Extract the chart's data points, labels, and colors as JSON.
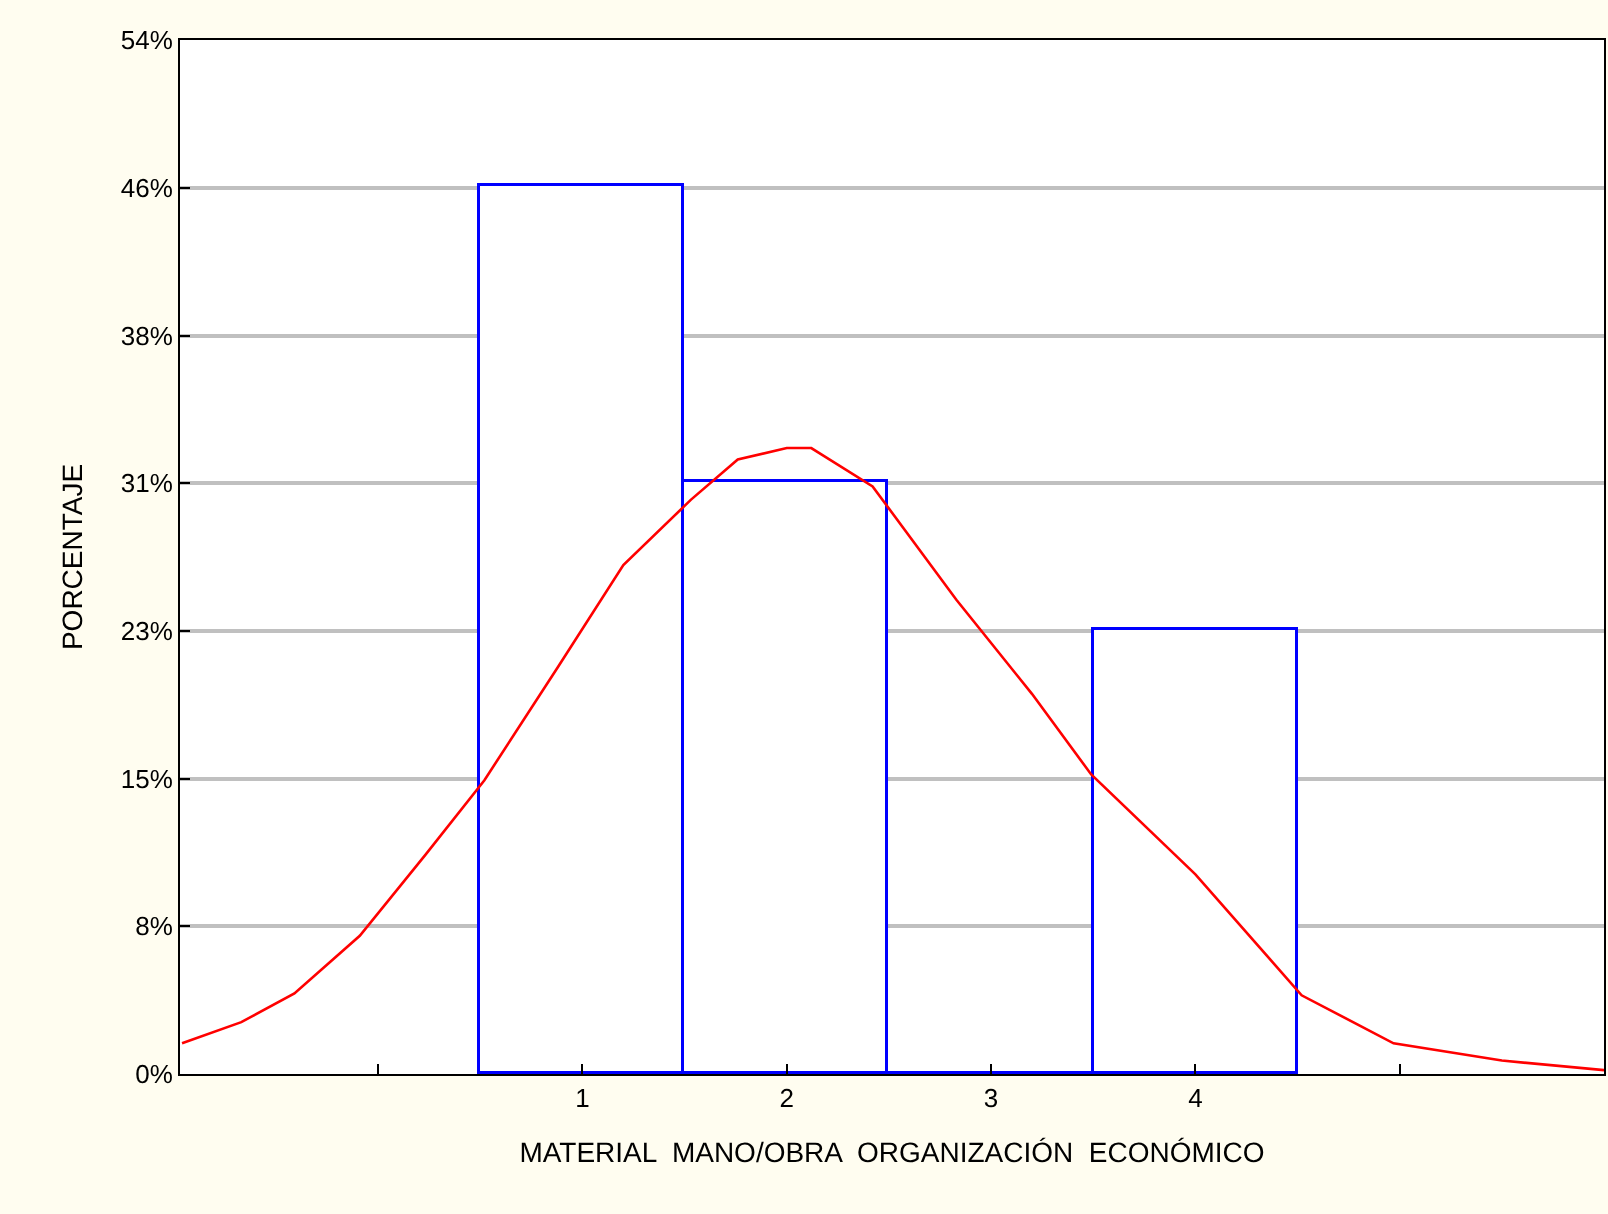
{
  "chart_data": {
    "type": "histogram",
    "xlabel": "MATERIAL  MANO/OBRA  ORGANIZACIÓN  ECONÓMICO",
    "ylabel": "PORCENTAJE",
    "bins": [
      0.5,
      1.5,
      2.5,
      3.5,
      4.5
    ],
    "values": [
      46.2,
      30.8,
      0,
      23.1
    ],
    "color": "#0000ff",
    "series": [
      {
        "type": "line",
        "color": "#ff0000",
        "x": [
          -0.96,
          -0.67,
          -0.41,
          -0.09,
          0.23,
          0.52,
          0.88,
          1.2,
          1.53,
          1.76,
          2.0,
          2.12,
          2.42,
          2.83,
          3.2,
          3.49,
          4.0,
          4.52,
          4.97,
          5.5,
          6.0
        ],
        "values": [
          1.6,
          2.7,
          4.2,
          7.2,
          11.4,
          15.3,
          21.2,
          26.5,
          29.9,
          32.0,
          32.6,
          32.6,
          30.6,
          24.7,
          19.8,
          15.6,
          10.4,
          4.1,
          1.6,
          0.7,
          0.2
        ]
      }
    ],
    "xlim": [
      -0.97,
      6.0
    ],
    "xticks": [
      {
        "value": 0,
        "label": null
      },
      1,
      2,
      3,
      4,
      {
        "value": 5,
        "label": null
      }
    ],
    "ylim": [
      0,
      53.85
    ],
    "yticks": [
      {
        "value": 0,
        "label": "0%"
      },
      {
        "value": 7.69,
        "label": "8%"
      },
      {
        "value": 15.38,
        "label": "15%"
      },
      {
        "value": 23.08,
        "label": "23%"
      },
      {
        "value": 30.77,
        "label": "31%"
      },
      {
        "value": 38.46,
        "label": "38%"
      },
      {
        "value": 46.15,
        "label": "46%"
      },
      {
        "value": 53.85,
        "label": "54%"
      }
    ],
    "grid": "y"
  }
}
